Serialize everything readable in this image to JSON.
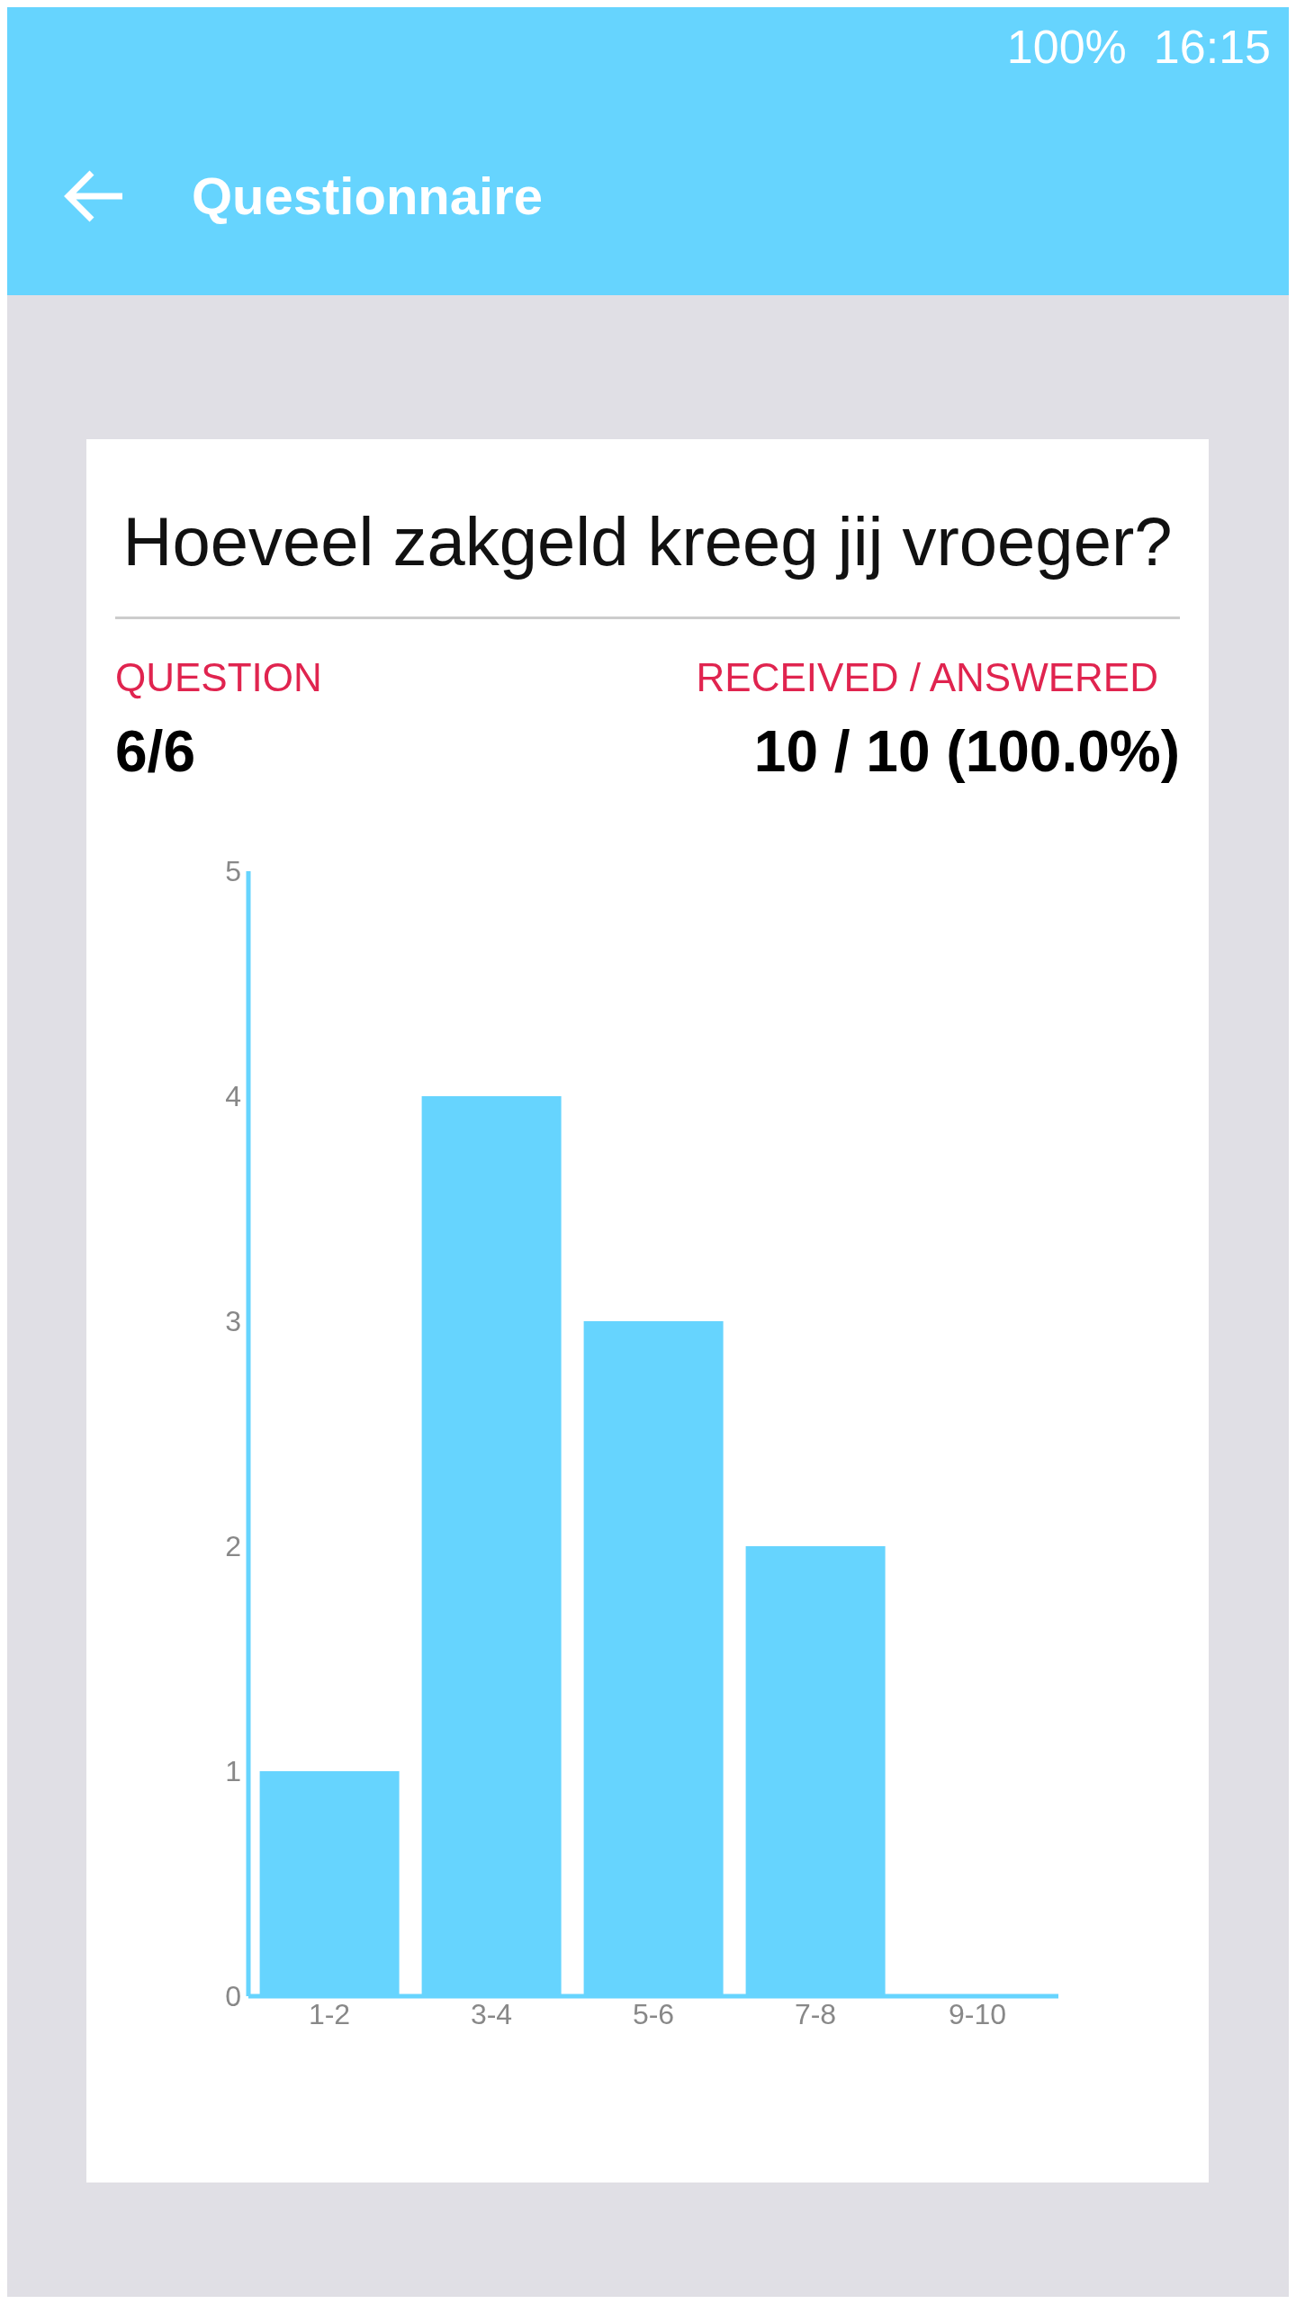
{
  "chart_data": {
    "type": "bar",
    "title": "Hoeveel zakgeld kreeg jij vroeger?",
    "categories": [
      "1-2",
      "3-4",
      "5-6",
      "7-8",
      "9-10"
    ],
    "values": [
      1,
      4,
      3,
      2,
      0
    ],
    "color": "#66d4fe",
    "ylim": [
      0,
      5
    ],
    "yticks": [
      0,
      1,
      2,
      3,
      4,
      5
    ],
    "grid": false,
    "annotations": [
      "Questionnaire",
      "QUESTION",
      "6/6",
      "RECEIVED / ANSWERED",
      "10 / 10 (100.0%)",
      "100%",
      "16:15"
    ]
  }
}
